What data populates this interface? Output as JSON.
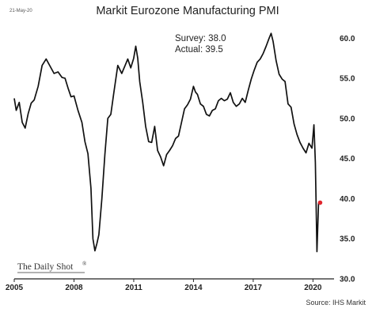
{
  "header": {
    "date": "21-May-20",
    "title": "Markit Eurozone Manufacturing PMI"
  },
  "annotation": {
    "survey": "Survey: 38.0",
    "actual": "Actual:  39.5"
  },
  "branding": "The Daily Shot",
  "source": "Source: IHS Markit",
  "colors": {
    "line": "#111111",
    "marker": "#e0262e",
    "axis": "#222222"
  },
  "chart_data": {
    "type": "line",
    "title": "Markit Eurozone Manufacturing PMI",
    "xlabel": "",
    "ylabel": "",
    "xlim": [
      2005.0,
      2020.9
    ],
    "ylim": [
      30,
      62
    ],
    "x_ticks": [
      2005,
      2008,
      2011,
      2014,
      2017,
      2020
    ],
    "x_tick_labels": [
      "2005",
      "2008",
      "2011",
      "2014",
      "2017",
      "2020"
    ],
    "y_ticks": [
      30,
      35,
      40,
      45,
      50,
      55,
      60
    ],
    "y_tick_labels": [
      "30.0",
      "35.0",
      "40.0",
      "45.0",
      "50.0",
      "55.0",
      "60.0"
    ],
    "y_axis_side": "right",
    "grid": false,
    "series": [
      {
        "x": [
          2005.0,
          2005.1,
          2005.25,
          2005.4,
          2005.55,
          2005.7,
          2005.85,
          2006.0,
          2006.2,
          2006.4,
          2006.6,
          2006.8,
          2007.0,
          2007.2,
          2007.4,
          2007.55,
          2007.7,
          2007.85,
          2008.0,
          2008.2,
          2008.4,
          2008.55,
          2008.7,
          2008.85,
          2008.95,
          2009.05,
          2009.15,
          2009.25,
          2009.4,
          2009.55,
          2009.7,
          2009.85,
          2010.0,
          2010.2,
          2010.4,
          2010.55,
          2010.7,
          2010.85,
          2011.0,
          2011.1,
          2011.2,
          2011.3,
          2011.45,
          2011.6,
          2011.75,
          2011.9,
          2012.05,
          2012.2,
          2012.35,
          2012.5,
          2012.65,
          2012.8,
          2012.95,
          2013.1,
          2013.25,
          2013.4,
          2013.55,
          2013.7,
          2013.85,
          2014.0,
          2014.1,
          2014.2,
          2014.35,
          2014.5,
          2014.65,
          2014.8,
          2014.95,
          2015.1,
          2015.25,
          2015.4,
          2015.55,
          2015.7,
          2015.85,
          2016.0,
          2016.15,
          2016.3,
          2016.45,
          2016.6,
          2016.75,
          2016.9,
          2017.05,
          2017.2,
          2017.35,
          2017.5,
          2017.65,
          2017.8,
          2017.9,
          2018.0,
          2018.15,
          2018.3,
          2018.45,
          2018.6,
          2018.75,
          2018.9,
          2019.05,
          2019.2,
          2019.35,
          2019.5,
          2019.65,
          2019.8,
          2019.95,
          2020.05,
          2020.12,
          2020.2,
          2020.28,
          2020.36
        ],
        "y": [
          52.5,
          51.0,
          52.0,
          49.5,
          48.8,
          50.6,
          51.9,
          52.3,
          54.0,
          56.6,
          57.4,
          56.5,
          55.6,
          55.8,
          55.1,
          55.0,
          53.8,
          52.7,
          52.8,
          51.0,
          49.5,
          47.1,
          45.6,
          41.3,
          35.0,
          33.5,
          34.4,
          35.5,
          40.0,
          45.5,
          50.0,
          50.5,
          53.2,
          56.6,
          55.6,
          56.5,
          57.4,
          56.3,
          57.5,
          59.0,
          57.5,
          54.6,
          52.0,
          49.0,
          47.1,
          47.0,
          49.0,
          46.0,
          45.2,
          44.1,
          45.5,
          46.0,
          46.6,
          47.5,
          47.8,
          49.5,
          51.2,
          51.7,
          52.4,
          54.0,
          53.3,
          53.0,
          51.8,
          51.5,
          50.5,
          50.3,
          51.0,
          51.2,
          52.2,
          52.5,
          52.2,
          52.4,
          53.2,
          52.0,
          51.5,
          51.8,
          52.5,
          52.0,
          53.5,
          54.9,
          56.0,
          57.0,
          57.4,
          58.1,
          59.0,
          60.0,
          60.6,
          59.6,
          57.2,
          55.5,
          54.9,
          54.6,
          51.8,
          51.4,
          49.3,
          48.0,
          47.0,
          46.3,
          45.7,
          46.9,
          46.3,
          49.2,
          44.5,
          33.4,
          39.4,
          39.5
        ]
      }
    ],
    "highlight_point": {
      "x": 2020.36,
      "y": 39.5,
      "label": "Actual: 39.5"
    }
  }
}
